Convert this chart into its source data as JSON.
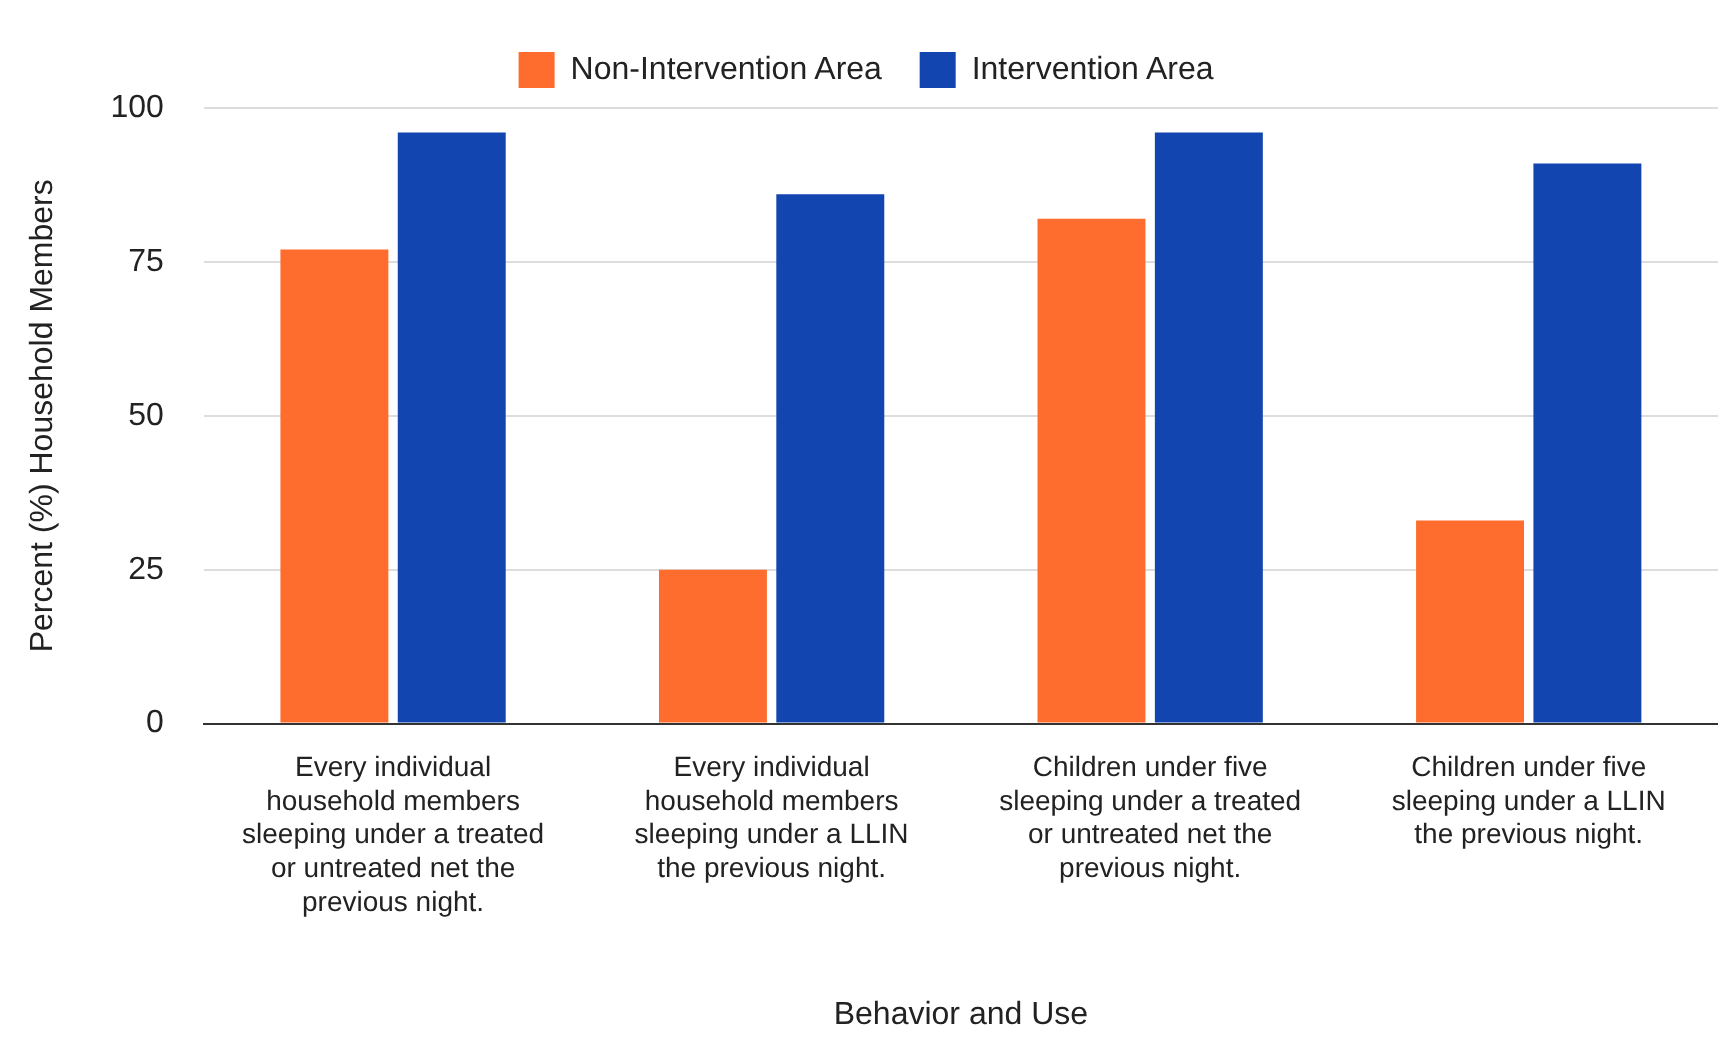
{
  "chart_data": {
    "type": "bar",
    "xlabel": "Behavior and Use",
    "ylabel": "Percent (%) Household Members",
    "categories": [
      "Every individual household members sleeping under a treated or untreated net the previous night.",
      "Every individual household members sleeping under a LLIN the previous night.",
      "Children under five sleeping under a treated or untreated net the previous night.",
      "Children under five sleeping under a LLIN the previous night."
    ],
    "series": [
      {
        "name": "Non-Intervention Area",
        "color": "#ff6d2e",
        "values": [
          77,
          25,
          82,
          33
        ]
      },
      {
        "name": "Intervention Area",
        "color": "#1245b0",
        "values": [
          96,
          86,
          96,
          91
        ]
      }
    ],
    "ylim": [
      0,
      100
    ],
    "yticks": [
      0,
      25,
      50,
      75,
      100
    ],
    "grid": "y",
    "legend": "top"
  }
}
